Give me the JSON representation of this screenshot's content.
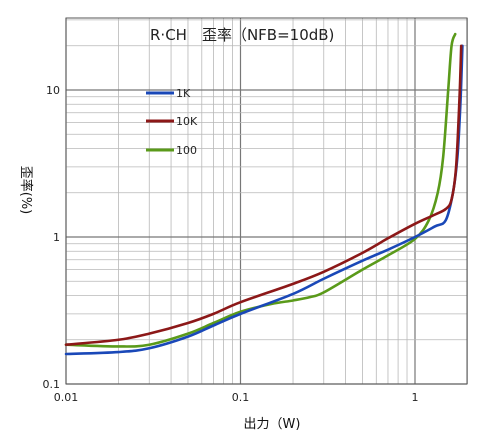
{
  "chart_data": {
    "type": "line",
    "title": "R·CH　歪率（NFB=10dB)",
    "xlabel": "出力（W)",
    "ylabel": "歪率(%)",
    "x_scale": "log",
    "y_scale": "log",
    "xlim": [
      0.01,
      2
    ],
    "ylim": [
      0.1,
      30
    ],
    "x_ticks": [
      {
        "value": 0.01,
        "label": "0.01"
      },
      {
        "value": 0.1,
        "label": "0.1"
      },
      {
        "value": 1,
        "label": "1"
      }
    ],
    "y_ticks": [
      {
        "value": 0.1,
        "label": "0.1"
      },
      {
        "value": 1,
        "label": "1"
      },
      {
        "value": 10,
        "label": "10"
      }
    ],
    "grid": true,
    "legend": "upper-left",
    "series": [
      {
        "name": "1K",
        "color": "#1a48b8",
        "points": [
          [
            0.01,
            0.16
          ],
          [
            0.02,
            0.165
          ],
          [
            0.03,
            0.175
          ],
          [
            0.05,
            0.21
          ],
          [
            0.07,
            0.25
          ],
          [
            0.1,
            0.3
          ],
          [
            0.2,
            0.41
          ],
          [
            0.3,
            0.52
          ],
          [
            0.5,
            0.69
          ],
          [
            0.7,
            0.82
          ],
          [
            1.0,
            1.0
          ],
          [
            1.3,
            1.18
          ],
          [
            1.5,
            1.3
          ],
          [
            1.65,
            2.0
          ],
          [
            1.75,
            3.5
          ],
          [
            1.82,
            8
          ],
          [
            1.87,
            20
          ]
        ]
      },
      {
        "name": "10K",
        "color": "#8c1818",
        "points": [
          [
            0.01,
            0.185
          ],
          [
            0.02,
            0.2
          ],
          [
            0.03,
            0.22
          ],
          [
            0.05,
            0.26
          ],
          [
            0.07,
            0.3
          ],
          [
            0.1,
            0.36
          ],
          [
            0.2,
            0.48
          ],
          [
            0.3,
            0.58
          ],
          [
            0.5,
            0.78
          ],
          [
            0.7,
            0.98
          ],
          [
            1.0,
            1.23
          ],
          [
            1.3,
            1.42
          ],
          [
            1.5,
            1.55
          ],
          [
            1.62,
            1.8
          ],
          [
            1.72,
            3.0
          ],
          [
            1.8,
            9
          ],
          [
            1.84,
            20
          ]
        ]
      },
      {
        "name": "100",
        "color": "#5a9a1a",
        "points": [
          [
            0.01,
            0.185
          ],
          [
            0.02,
            0.18
          ],
          [
            0.03,
            0.185
          ],
          [
            0.05,
            0.22
          ],
          [
            0.07,
            0.26
          ],
          [
            0.1,
            0.31
          ],
          [
            0.15,
            0.35
          ],
          [
            0.2,
            0.37
          ],
          [
            0.25,
            0.39
          ],
          [
            0.3,
            0.42
          ],
          [
            0.5,
            0.6
          ],
          [
            0.7,
            0.75
          ],
          [
            1.0,
            0.97
          ],
          [
            1.2,
            1.3
          ],
          [
            1.35,
            2.0
          ],
          [
            1.45,
            3.5
          ],
          [
            1.55,
            10
          ],
          [
            1.62,
            20
          ],
          [
            1.7,
            24
          ]
        ]
      }
    ]
  }
}
